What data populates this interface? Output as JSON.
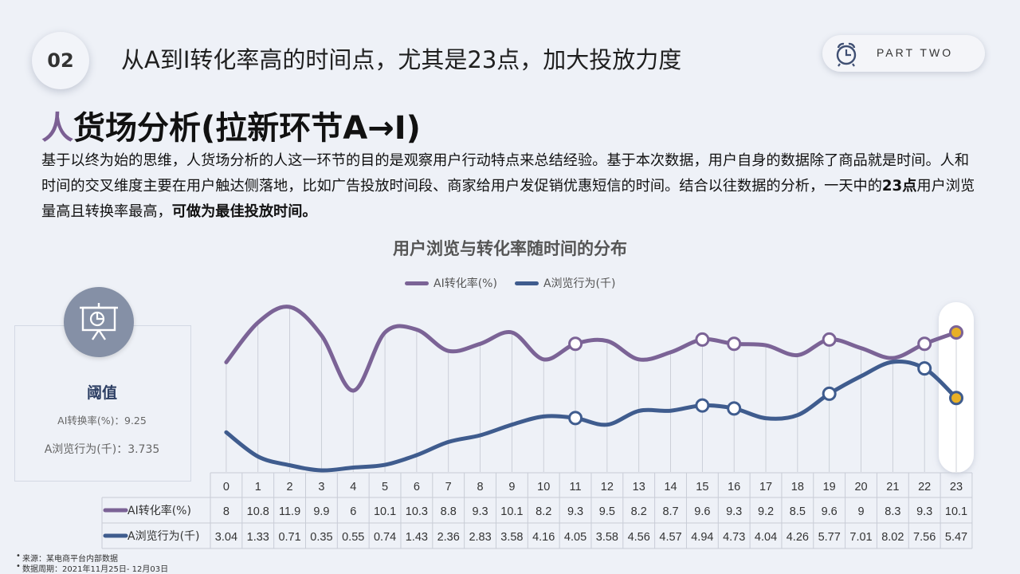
{
  "header": {
    "number": "02",
    "headline": "从A到I转化率高的时间点，尤其是23点，加大投放力度",
    "part_label": "PART TWO",
    "part_icon": "alarm-clock-icon"
  },
  "section": {
    "title_accent": "人",
    "title_rest": "货场分析(拉新环节A→I)"
  },
  "intro": {
    "p1": "基于以终为始的思维，人货场分析的人这一环节的目的是观察用户行动特点来总结经验。基于本次数据，用户自身的数据除了商品就是时间。人和时间的交叉维度主要在用户触达侧落地，比如广告投放时间段、商家给用户发促销优惠短信的时间。结合以往数据的分析，一天中的",
    "bold1": "23点",
    "p2": "用户浏览量高且转换率最高，",
    "bold2": "可做为最佳投放时间。"
  },
  "threshold": {
    "icon": "presentation-chart-icon",
    "title": "阈值",
    "line1": "AI转换率(%)：9.25",
    "line2": "A浏览行为(千)：3.735"
  },
  "footnotes": {
    "source": "来源：某电商平台内部数据",
    "period": "数据周期：2021年11月25日- 12月03日"
  },
  "colors": {
    "purple": "#7b6396",
    "navy": "#3f5c8e",
    "highlight": "#e8b026"
  },
  "chart_data": {
    "type": "line",
    "title": "用户浏览与转化率随时间的分布",
    "categories": [
      "0",
      "1",
      "2",
      "3",
      "4",
      "5",
      "6",
      "7",
      "8",
      "9",
      "10",
      "11",
      "12",
      "13",
      "14",
      "15",
      "16",
      "17",
      "18",
      "19",
      "20",
      "21",
      "22",
      "23"
    ],
    "series": [
      {
        "name": "AI转化率(%)",
        "values": [
          8,
          10.8,
          11.9,
          9.9,
          6,
          10.1,
          10.3,
          8.8,
          9.3,
          10.1,
          8.2,
          9.3,
          9.5,
          8.2,
          8.7,
          9.6,
          9.3,
          9.2,
          8.5,
          9.6,
          9,
          8.3,
          9.3,
          10.1
        ]
      },
      {
        "name": "A浏览行为(千)",
        "values": [
          3.04,
          1.33,
          0.71,
          0.35,
          0.55,
          0.74,
          1.43,
          2.36,
          2.83,
          3.58,
          4.16,
          4.05,
          3.58,
          4.56,
          4.57,
          4.94,
          4.73,
          4.04,
          4.26,
          5.77,
          7.01,
          8.02,
          7.56,
          5.47
        ]
      }
    ],
    "marked_points": [
      11,
      15,
      16,
      19,
      22,
      23
    ],
    "highlight_category": 23,
    "legend_position": "top-center",
    "grid": false,
    "data_table": true
  }
}
